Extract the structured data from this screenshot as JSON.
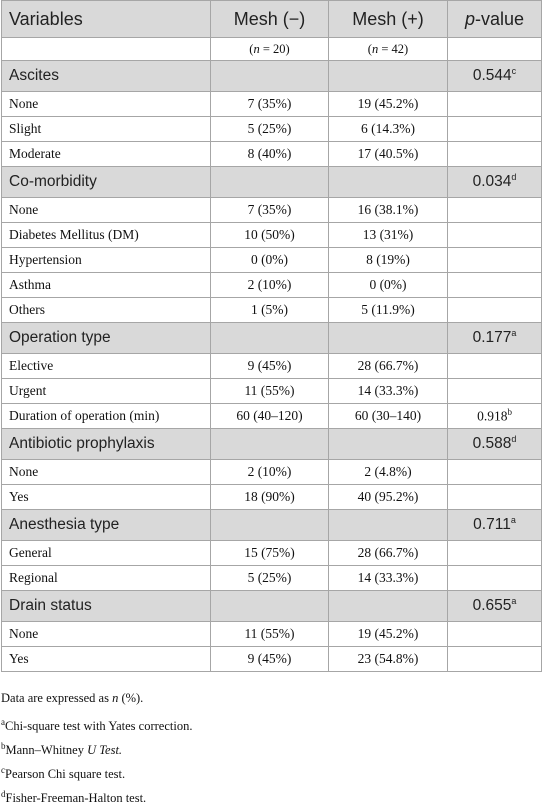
{
  "table": {
    "columns": [
      "Variables",
      "Mesh (−)",
      "Mesh (+)"
    ],
    "p_header": {
      "italic": "p",
      "text": "-value"
    },
    "n_row": [
      [
        "(",
        "n",
        " = 20)"
      ],
      [
        "(",
        "n",
        " = 42)"
      ]
    ],
    "sections": [
      {
        "title": "Ascites",
        "p": "0.544",
        "sup": "c",
        "rows": [
          [
            "None",
            "7 (35%)",
            "19 (45.2%)"
          ],
          [
            "Slight",
            "5 (25%)",
            "6 (14.3%)"
          ],
          [
            "Moderate",
            "8 (40%)",
            "17 (40.5%)"
          ]
        ]
      },
      {
        "title": "Co-morbidity",
        "p": "0.034",
        "sup": "d",
        "rows": [
          [
            "None",
            "7 (35%)",
            "16 (38.1%)"
          ],
          [
            "Diabetes Mellitus (DM)",
            "10 (50%)",
            "13 (31%)"
          ],
          [
            "Hypertension",
            "0 (0%)",
            "8 (19%)"
          ],
          [
            "Asthma",
            "2 (10%)",
            "0 (0%)"
          ],
          [
            "Others",
            "1 (5%)",
            "5 (11.9%)"
          ]
        ]
      },
      {
        "title": "Operation type",
        "p": "0.177",
        "sup": "a",
        "rows": [
          [
            "Elective",
            "9 (45%)",
            "28 (66.7%)"
          ],
          [
            "Urgent",
            "11 (55%)",
            "14 (33.3%)"
          ],
          [
            "Duration of operation (min)",
            "60 (40–120)",
            "60 (30–140)",
            "0.918",
            "b"
          ]
        ]
      },
      {
        "title": "Antibiotic prophylaxis",
        "p": "0.588",
        "sup": "d",
        "rows": [
          [
            "None",
            "2 (10%)",
            "2 (4.8%)"
          ],
          [
            "Yes",
            "18 (90%)",
            "40 (95.2%)"
          ]
        ]
      },
      {
        "title": "Anesthesia type",
        "p": "0.711",
        "sup": "a",
        "rows": [
          [
            "General",
            "15 (75%)",
            "28 (66.7%)"
          ],
          [
            "Regional",
            "5 (25%)",
            "14 (33.3%)"
          ]
        ]
      },
      {
        "title": "Drain status",
        "p": "0.655",
        "sup": "a",
        "rows": [
          [
            "None",
            "11 (55%)",
            "19 (45.2%)"
          ],
          [
            "Yes",
            "9 (45%)",
            "23 (54.8%)"
          ]
        ]
      }
    ]
  },
  "footnotes": [
    [
      {
        "t": "Data are expressed as "
      },
      {
        "t": "n",
        "i": true
      },
      {
        "t": " (%)."
      }
    ],
    [
      {
        "t": "a",
        "sup": true
      },
      {
        "t": "Chi-square test with Yates correction."
      }
    ],
    [
      {
        "t": "b",
        "sup": true
      },
      {
        "t": "Mann–Whitney "
      },
      {
        "t": "U Test.",
        "i": true
      }
    ],
    [
      {
        "t": "c",
        "sup": true
      },
      {
        "t": "Pearson Chi square test."
      }
    ],
    [
      {
        "t": "d",
        "sup": true
      },
      {
        "t": "Fisher-Freeman-Halton test."
      }
    ]
  ]
}
